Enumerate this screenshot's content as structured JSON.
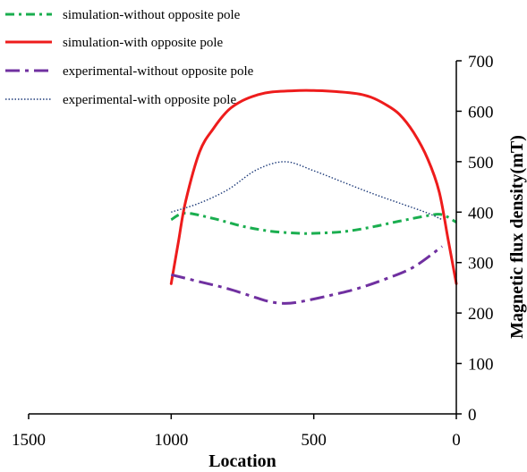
{
  "chart_data": {
    "type": "line",
    "xlabel": "Location",
    "ylabel": "Magnetic flux density(mT)",
    "xlim": [
      1500,
      0
    ],
    "ylim": [
      0,
      700
    ],
    "x_reversed": true,
    "y_axis_position": "right",
    "grid": false,
    "legend_position": "top-left",
    "x_ticks": [
      "1500",
      "1000",
      "500",
      "0"
    ],
    "y_ticks": [
      "0",
      "100",
      "200",
      "300",
      "400",
      "500",
      "600",
      "700"
    ],
    "series": [
      {
        "name": "simulation-without opposite pole",
        "color": "#1aae4f",
        "dash": "dashdot",
        "points": [
          [
            1000,
            385
          ],
          [
            950,
            398
          ],
          [
            850,
            387
          ],
          [
            750,
            372
          ],
          [
            650,
            362
          ],
          [
            550,
            358
          ],
          [
            500,
            358
          ],
          [
            400,
            361
          ],
          [
            300,
            370
          ],
          [
            200,
            382
          ],
          [
            100,
            393
          ],
          [
            50,
            395
          ],
          [
            0,
            380
          ]
        ]
      },
      {
        "name": "simulation-with opposite pole",
        "color": "#ee1c1c",
        "dash": "solid",
        "points": [
          [
            1000,
            258
          ],
          [
            975,
            340
          ],
          [
            950,
            420
          ],
          [
            900,
            520
          ],
          [
            850,
            567
          ],
          [
            800,
            602
          ],
          [
            750,
            621
          ],
          [
            700,
            632
          ],
          [
            650,
            638
          ],
          [
            550,
            641
          ],
          [
            500,
            641
          ],
          [
            450,
            640
          ],
          [
            350,
            635
          ],
          [
            300,
            628
          ],
          [
            250,
            614
          ],
          [
            200,
            594
          ],
          [
            150,
            558
          ],
          [
            100,
            505
          ],
          [
            60,
            440
          ],
          [
            30,
            350
          ],
          [
            0,
            258
          ]
        ]
      },
      {
        "name": "experimental-without opposite pole",
        "color": "#7030a0",
        "dash": "longdashdot",
        "points": [
          [
            1000,
            276
          ],
          [
            900,
            262
          ],
          [
            800,
            248
          ],
          [
            700,
            230
          ],
          [
            650,
            222
          ],
          [
            600,
            219
          ],
          [
            550,
            222
          ],
          [
            450,
            234
          ],
          [
            350,
            248
          ],
          [
            250,
            267
          ],
          [
            150,
            291
          ],
          [
            50,
            332
          ]
        ]
      },
      {
        "name": "experimental-with opposite pole",
        "color": "#1f3c7a",
        "dash": "dotted",
        "points": [
          [
            1000,
            400
          ],
          [
            900,
            418
          ],
          [
            800,
            445
          ],
          [
            700,
            484
          ],
          [
            600,
            500
          ],
          [
            500,
            482
          ],
          [
            400,
            460
          ],
          [
            300,
            438
          ],
          [
            200,
            418
          ],
          [
            100,
            398
          ],
          [
            50,
            385
          ]
        ]
      }
    ]
  }
}
